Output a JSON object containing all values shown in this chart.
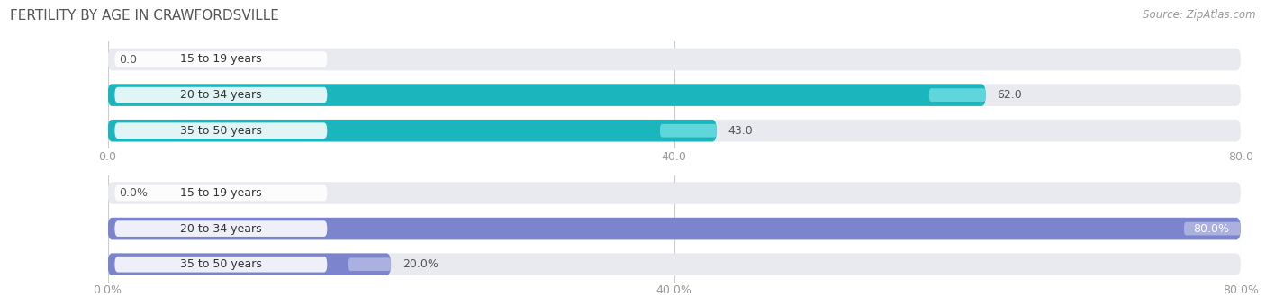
{
  "title": "FERTILITY BY AGE IN CRAWFORDSVILLE",
  "source": "Source: ZipAtlas.com",
  "top_chart": {
    "categories": [
      "15 to 19 years",
      "20 to 34 years",
      "35 to 50 years"
    ],
    "values": [
      0.0,
      62.0,
      43.0
    ],
    "xlim": [
      0,
      80
    ],
    "xticks": [
      0.0,
      40.0,
      80.0
    ],
    "xtick_labels": [
      "0.0",
      "40.0",
      "80.0"
    ],
    "bar_color_dark": "#1ab5bd",
    "bar_color_light": "#5ed6dc",
    "value_suffix": ""
  },
  "bottom_chart": {
    "categories": [
      "15 to 19 years",
      "20 to 34 years",
      "35 to 50 years"
    ],
    "values": [
      0.0,
      80.0,
      20.0
    ],
    "xlim": [
      0,
      80
    ],
    "xticks": [
      0.0,
      40.0,
      80.0
    ],
    "xtick_labels": [
      "0.0%",
      "40.0%",
      "80.0%"
    ],
    "bar_color_dark": "#7b84cc",
    "bar_color_light": "#aab0e0",
    "value_suffix": "%"
  },
  "bar_bg_color": "#e8eaf0",
  "bar_bg_border_color": "#d0d4e0",
  "title_color": "#555555",
  "tick_color": "#999999",
  "label_fontsize": 9,
  "tick_fontsize": 9,
  "title_fontsize": 11,
  "source_fontsize": 8.5,
  "value_fontsize": 9
}
